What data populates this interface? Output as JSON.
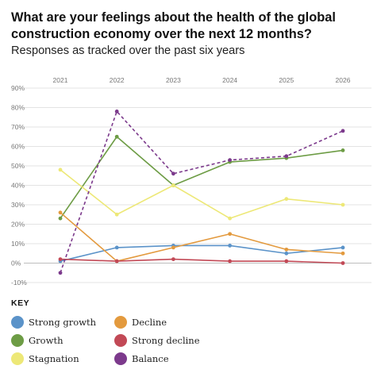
{
  "title": "What are your feelings about the health of the global construction economy over the next 12 months?",
  "subtitle": "Responses as tracked over the past six years",
  "key_label": "KEY",
  "chart_data": {
    "type": "line",
    "title": "What are your feelings about the health of the global construction economy over the next 12 months?",
    "subtitle": "Responses as tracked over the past six years",
    "x": [
      "2021",
      "2022",
      "2023",
      "2024",
      "2025",
      "2026"
    ],
    "ylim": [
      -10,
      90
    ],
    "yticks": [
      "-10%",
      "0%",
      "10%",
      "20%",
      "30%",
      "40%",
      "50%",
      "60%",
      "70%",
      "80%",
      "90%"
    ],
    "grid": true,
    "legend_position": "bottom",
    "series": [
      {
        "name": "Strong growth",
        "color": "#5b93c9",
        "dashed": false,
        "values": [
          1,
          8,
          9,
          9,
          5,
          8
        ]
      },
      {
        "name": "Growth",
        "color": "#6d9c45",
        "dashed": false,
        "values": [
          23,
          65,
          40,
          52,
          54,
          58
        ]
      },
      {
        "name": "Stagnation",
        "color": "#ede877",
        "dashed": false,
        "values": [
          48,
          25,
          40,
          23,
          33,
          30
        ]
      },
      {
        "name": "Decline",
        "color": "#e39a3e",
        "dashed": false,
        "values": [
          26,
          1,
          8,
          15,
          7,
          5
        ]
      },
      {
        "name": "Strong decline",
        "color": "#c24956",
        "dashed": false,
        "values": [
          2,
          1,
          2,
          1,
          1,
          0
        ]
      },
      {
        "name": "Balance",
        "color": "#7c3a8c",
        "dashed": true,
        "values": [
          -5,
          78,
          46,
          53,
          55,
          68
        ]
      }
    ]
  }
}
